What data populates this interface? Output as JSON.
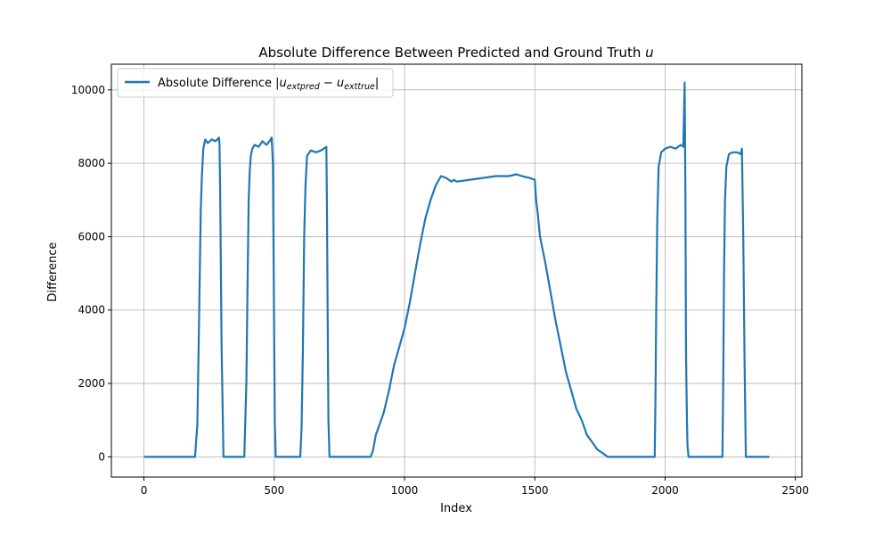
{
  "chart_data": {
    "type": "line",
    "title_prefix": "Absolute Difference Between Predicted and Ground Truth ",
    "title_var": "u",
    "xlabel": "Index",
    "ylabel": "Difference",
    "xlim": [
      -125,
      2525
    ],
    "ylim": [
      -550,
      10700
    ],
    "x_ticks": [
      0,
      500,
      1000,
      1500,
      2000,
      2500
    ],
    "y_ticks": [
      0,
      2000,
      4000,
      6000,
      8000,
      10000
    ],
    "grid": true,
    "legend_position": "top-left",
    "legend": {
      "prefix": "Absolute Difference |",
      "u1": "u",
      "sub1": "extpred",
      "minus": " − ",
      "u2": "u",
      "sub2": "exttrue",
      "suffix": "|"
    },
    "series": [
      {
        "color": "#1f77b4",
        "x": [
          0,
          196,
          205,
          212,
          218,
          222,
          228,
          235,
          245,
          260,
          275,
          288,
          290,
          293,
          298,
          305,
          310,
          385,
          393,
          398,
          402,
          406,
          410,
          416,
          425,
          440,
          455,
          470,
          482,
          490,
          495,
          498,
          502,
          506,
          510,
          600,
          605,
          610,
          615,
          620,
          626,
          640,
          660,
          680,
          700,
          702,
          705,
          708,
          712,
          718,
          870,
          880,
          890,
          900,
          920,
          940,
          960,
          980,
          1000,
          1020,
          1040,
          1060,
          1080,
          1100,
          1120,
          1140,
          1160,
          1180,
          1190,
          1200,
          1250,
          1300,
          1350,
          1400,
          1430,
          1450,
          1480,
          1500,
          1505,
          1510,
          1520,
          1540,
          1560,
          1580,
          1600,
          1620,
          1640,
          1660,
          1680,
          1700,
          1720,
          1740,
          1760,
          1770,
          1780,
          1960,
          1963,
          1966,
          1970,
          1975,
          1985,
          2000,
          2020,
          2040,
          2060,
          2070,
          2075,
          2078,
          2080,
          2082,
          2084,
          2086,
          2090,
          2095,
          2220,
          2223,
          2226,
          2230,
          2235,
          2245,
          2260,
          2275,
          2290,
          2295,
          2300,
          2305,
          2310,
          2400
        ],
        "y": [
          0,
          0,
          900,
          4000,
          6700,
          7600,
          8400,
          8650,
          8550,
          8650,
          8600,
          8700,
          8500,
          7000,
          3000,
          0,
          0,
          0,
          2000,
          5000,
          7000,
          7800,
          8200,
          8400,
          8500,
          8450,
          8600,
          8500,
          8600,
          8700,
          8000,
          5000,
          1000,
          0,
          0,
          0,
          800,
          3000,
          6000,
          7400,
          8200,
          8350,
          8300,
          8350,
          8450,
          7000,
          4000,
          1000,
          0,
          0,
          0,
          200,
          600,
          800,
          1200,
          1800,
          2500,
          3000,
          3500,
          4200,
          5000,
          5800,
          6500,
          7000,
          7400,
          7650,
          7600,
          7500,
          7550,
          7500,
          7550,
          7600,
          7650,
          7650,
          7700,
          7650,
          7600,
          7550,
          7000,
          6700,
          6000,
          5300,
          4500,
          3700,
          3000,
          2300,
          1800,
          1300,
          1000,
          600,
          400,
          200,
          100,
          50,
          0,
          0,
          1500,
          4000,
          6500,
          7900,
          8300,
          8400,
          8450,
          8400,
          8500,
          8450,
          10200,
          7000,
          3000,
          2000,
          1000,
          300,
          0,
          0,
          0,
          2000,
          5000,
          7000,
          7900,
          8250,
          8300,
          8300,
          8250,
          8400,
          6000,
          2500,
          0,
          0
        ]
      }
    ]
  }
}
